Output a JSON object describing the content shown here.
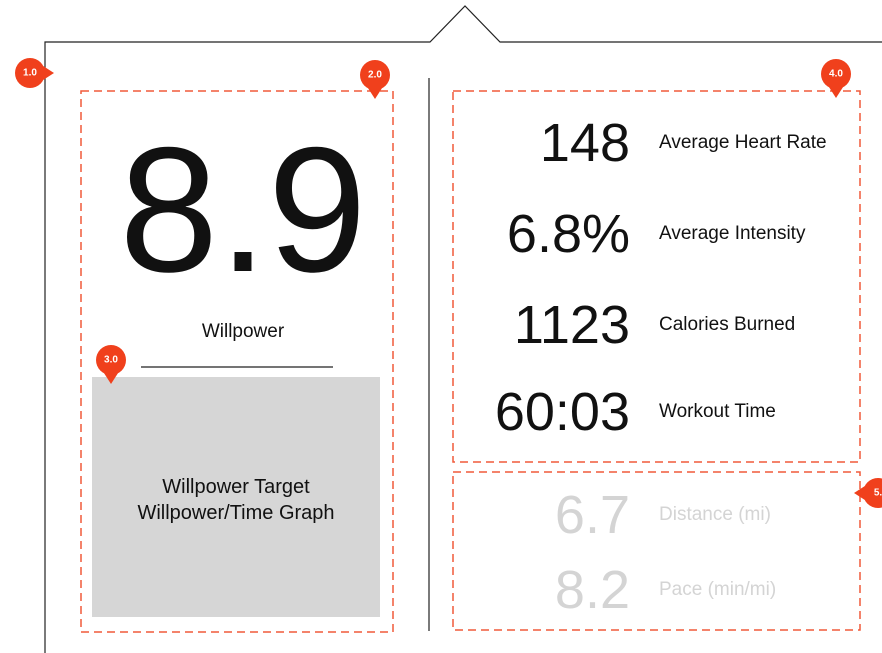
{
  "annotations": [
    "1.0",
    "2.0",
    "3.0",
    "4.0",
    "5."
  ],
  "willpower": {
    "value": "8.9",
    "label": "Willpower",
    "graph": [
      "Willpower Target",
      "Willpower/Time Graph"
    ]
  },
  "stats": [
    {
      "value": "148",
      "label": "Average Heart Rate"
    },
    {
      "value": "6.8%",
      "label": "Average Intensity"
    },
    {
      "value": "1123",
      "label": "Calories Burned"
    },
    {
      "value": "60:03",
      "label": "Workout Time"
    }
  ],
  "secondary_stats": [
    {
      "value": "6.7",
      "label": "Distance (mi)"
    },
    {
      "value": "8.2",
      "label": "Pace (min/mi)"
    }
  ]
}
